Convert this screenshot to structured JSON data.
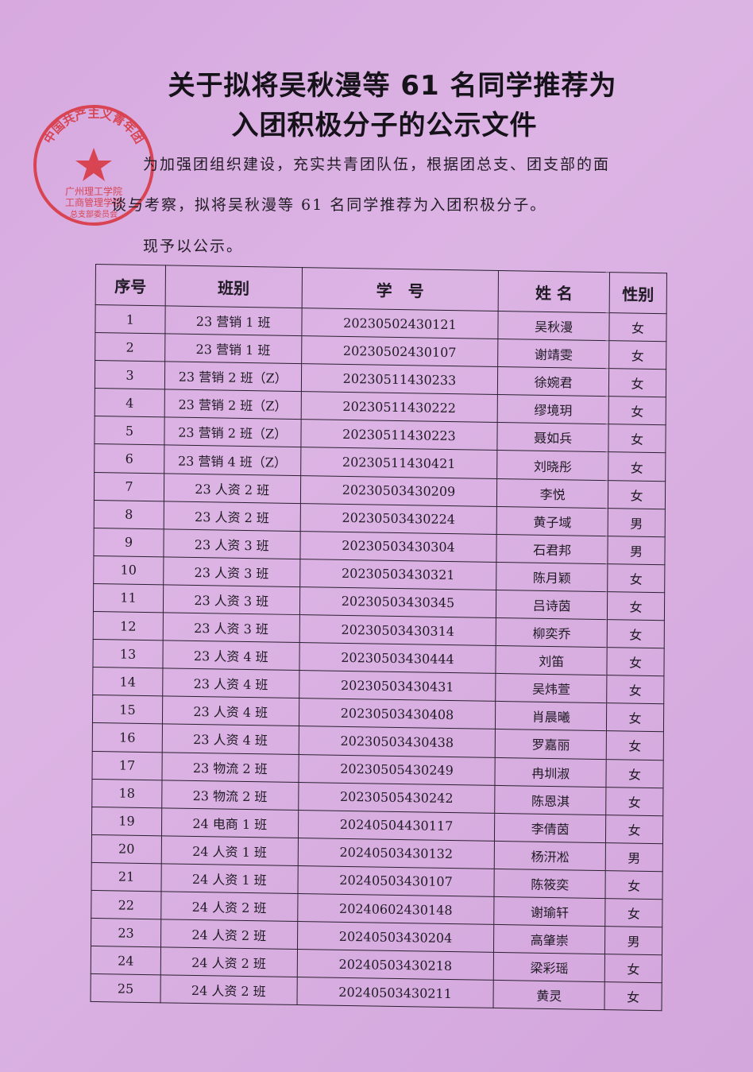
{
  "document": {
    "title_line1": "关于拟将吴秋漫等 61 名同学推荐为",
    "title_line2": "入团积极分子的公示文件",
    "para_line1": "为加强团组织建设，充实共青团队伍，根据团总支、团支部的面",
    "para_line2": "谈与考察，拟将吴秋漫等 61 名同学推荐为入团积极分子。",
    "para_line3": "现予以公示。",
    "stamp": {
      "outer_text": "中国共产主义青年团",
      "line1": "广州理工学院",
      "line2": "工商管理学院",
      "line3": "总支部委员会",
      "color": "#d8323a"
    }
  },
  "table": {
    "headers": [
      "序号",
      "班别",
      "学　号",
      "姓 名",
      "性别"
    ],
    "rows": [
      [
        "1",
        "23 营销 1 班",
        "20230502430121",
        "吴秋漫",
        "女"
      ],
      [
        "2",
        "23 营销 1 班",
        "20230502430107",
        "谢靖雯",
        "女"
      ],
      [
        "3",
        "23 营销 2 班（Z）",
        "20230511430233",
        "徐婉君",
        "女"
      ],
      [
        "4",
        "23 营销 2 班（Z）",
        "20230511430222",
        "缪境玥",
        "女"
      ],
      [
        "5",
        "23 营销 2 班（Z）",
        "20230511430223",
        "聂如兵",
        "女"
      ],
      [
        "6",
        "23 营销 4 班（Z）",
        "20230511430421",
        "刘晓彤",
        "女"
      ],
      [
        "7",
        "23 人资 2 班",
        "20230503430209",
        "李悦",
        "女"
      ],
      [
        "8",
        "23 人资 2 班",
        "20230503430224",
        "黄子域",
        "男"
      ],
      [
        "9",
        "23 人资 3 班",
        "20230503430304",
        "石君邦",
        "男"
      ],
      [
        "10",
        "23 人资 3 班",
        "20230503430321",
        "陈月颖",
        "女"
      ],
      [
        "11",
        "23 人资 3 班",
        "20230503430345",
        "吕诗茵",
        "女"
      ],
      [
        "12",
        "23 人资 3 班",
        "20230503430314",
        "柳奕乔",
        "女"
      ],
      [
        "13",
        "23 人资 4 班",
        "20230503430444",
        "刘笛",
        "女"
      ],
      [
        "14",
        "23 人资 4 班",
        "20230503430431",
        "吴炜萱",
        "女"
      ],
      [
        "15",
        "23 人资 4 班",
        "20230503430408",
        "肖晨曦",
        "女"
      ],
      [
        "16",
        "23 人资 4 班",
        "20230503430438",
        "罗嘉丽",
        "女"
      ],
      [
        "17",
        "23 物流 2 班",
        "20230505430249",
        "冉圳淑",
        "女"
      ],
      [
        "18",
        "23 物流 2 班",
        "20230505430242",
        "陈恩淇",
        "女"
      ],
      [
        "19",
        "24 电商 1 班",
        "20240504430117",
        "李倩茵",
        "女"
      ],
      [
        "20",
        "24 人资 1 班",
        "20240503430132",
        "杨汧凇",
        "男"
      ],
      [
        "21",
        "24 人资 1 班",
        "20240503430107",
        "陈筱奕",
        "女"
      ],
      [
        "22",
        "24 人资 2 班",
        "20240602430148",
        "谢瑜轩",
        "女"
      ],
      [
        "23",
        "24 人资 2 班",
        "20240503430204",
        "高肇崇",
        "男"
      ],
      [
        "24",
        "24 人资 2 班",
        "20240503430218",
        "梁彩瑶",
        "女"
      ],
      [
        "25",
        "24 人资 2 班",
        "20240503430211",
        "黄灵",
        "女"
      ]
    ]
  }
}
